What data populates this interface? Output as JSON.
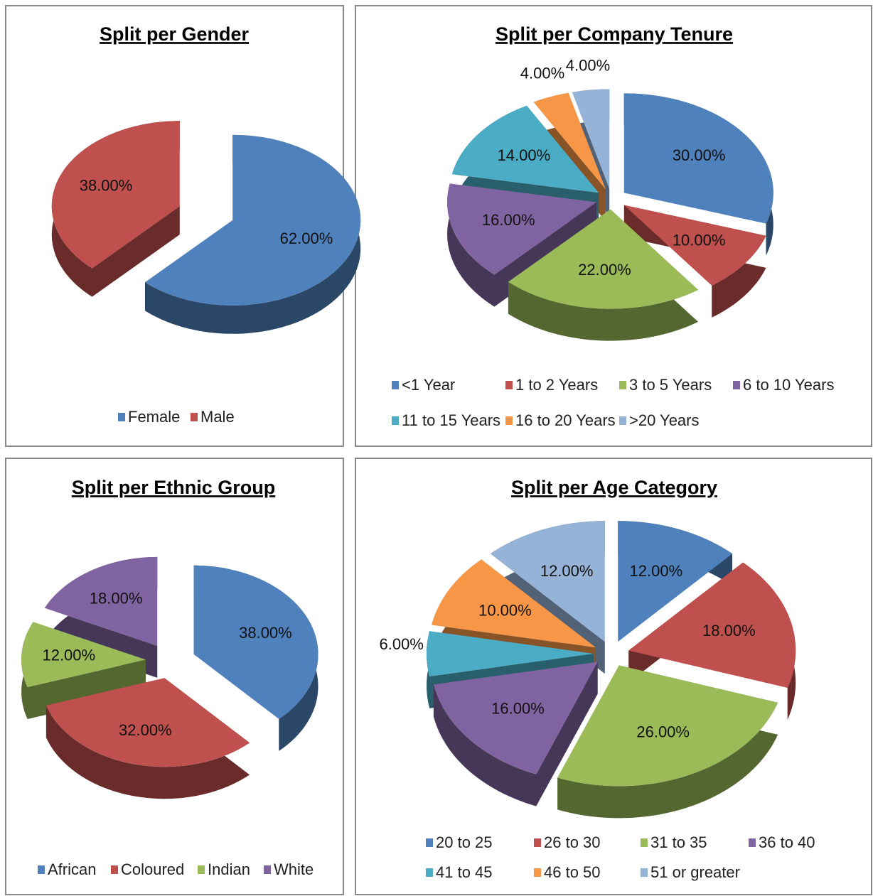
{
  "chart_data": [
    {
      "type": "pie",
      "title": "Split per Gender",
      "categories": [
        "Female",
        "Male"
      ],
      "values": [
        62,
        38
      ],
      "value_labels": [
        "62.00%",
        "38.00%"
      ],
      "colors": [
        "#4f81bd",
        "#c0504d"
      ],
      "legend": "bottom"
    },
    {
      "type": "pie",
      "title": "Split per Company Tenure",
      "categories": [
        "<1 Year",
        "1 to 2 Years",
        "3 to 5 Years",
        "6 to 10 Years",
        "11 to 15 Years",
        "16 to 20 Years",
        ">20 Years"
      ],
      "values": [
        30,
        10,
        22,
        16,
        14,
        4,
        4
      ],
      "value_labels": [
        "30.00%",
        "10.00%",
        "22.00%",
        "16.00%",
        "14.00%",
        "4.00%",
        "4.00%"
      ],
      "colors": [
        "#4f81bd",
        "#c0504d",
        "#9bbb59",
        "#8064a2",
        "#4bacc6",
        "#f79646",
        "#95b3d7"
      ],
      "legend": "bottom"
    },
    {
      "type": "pie",
      "title": "Split per Ethnic Group",
      "categories": [
        "African",
        "Coloured",
        "Indian",
        "White"
      ],
      "values": [
        38,
        32,
        12,
        18
      ],
      "value_labels": [
        "38.00%",
        "32.00%",
        "12.00%",
        "18.00%"
      ],
      "colors": [
        "#4f81bd",
        "#c0504d",
        "#9bbb59",
        "#8064a2"
      ],
      "legend": "bottom"
    },
    {
      "type": "pie",
      "title": "Split per Age Category",
      "categories": [
        "20 to 25",
        "26 to 30",
        "31 to 35",
        "36 to 40",
        "41 to 45",
        "46 to 50",
        "51 or greater"
      ],
      "values": [
        12,
        18,
        26,
        16,
        6,
        10,
        12
      ],
      "value_labels": [
        "12.00%",
        "18.00%",
        "26.00%",
        "16.00%",
        "6.00%",
        "10.00%",
        "12.00%"
      ],
      "colors": [
        "#4f81bd",
        "#c0504d",
        "#9bbb59",
        "#8064a2",
        "#4bacc6",
        "#f79646",
        "#95b3d7"
      ],
      "legend": "bottom"
    }
  ]
}
